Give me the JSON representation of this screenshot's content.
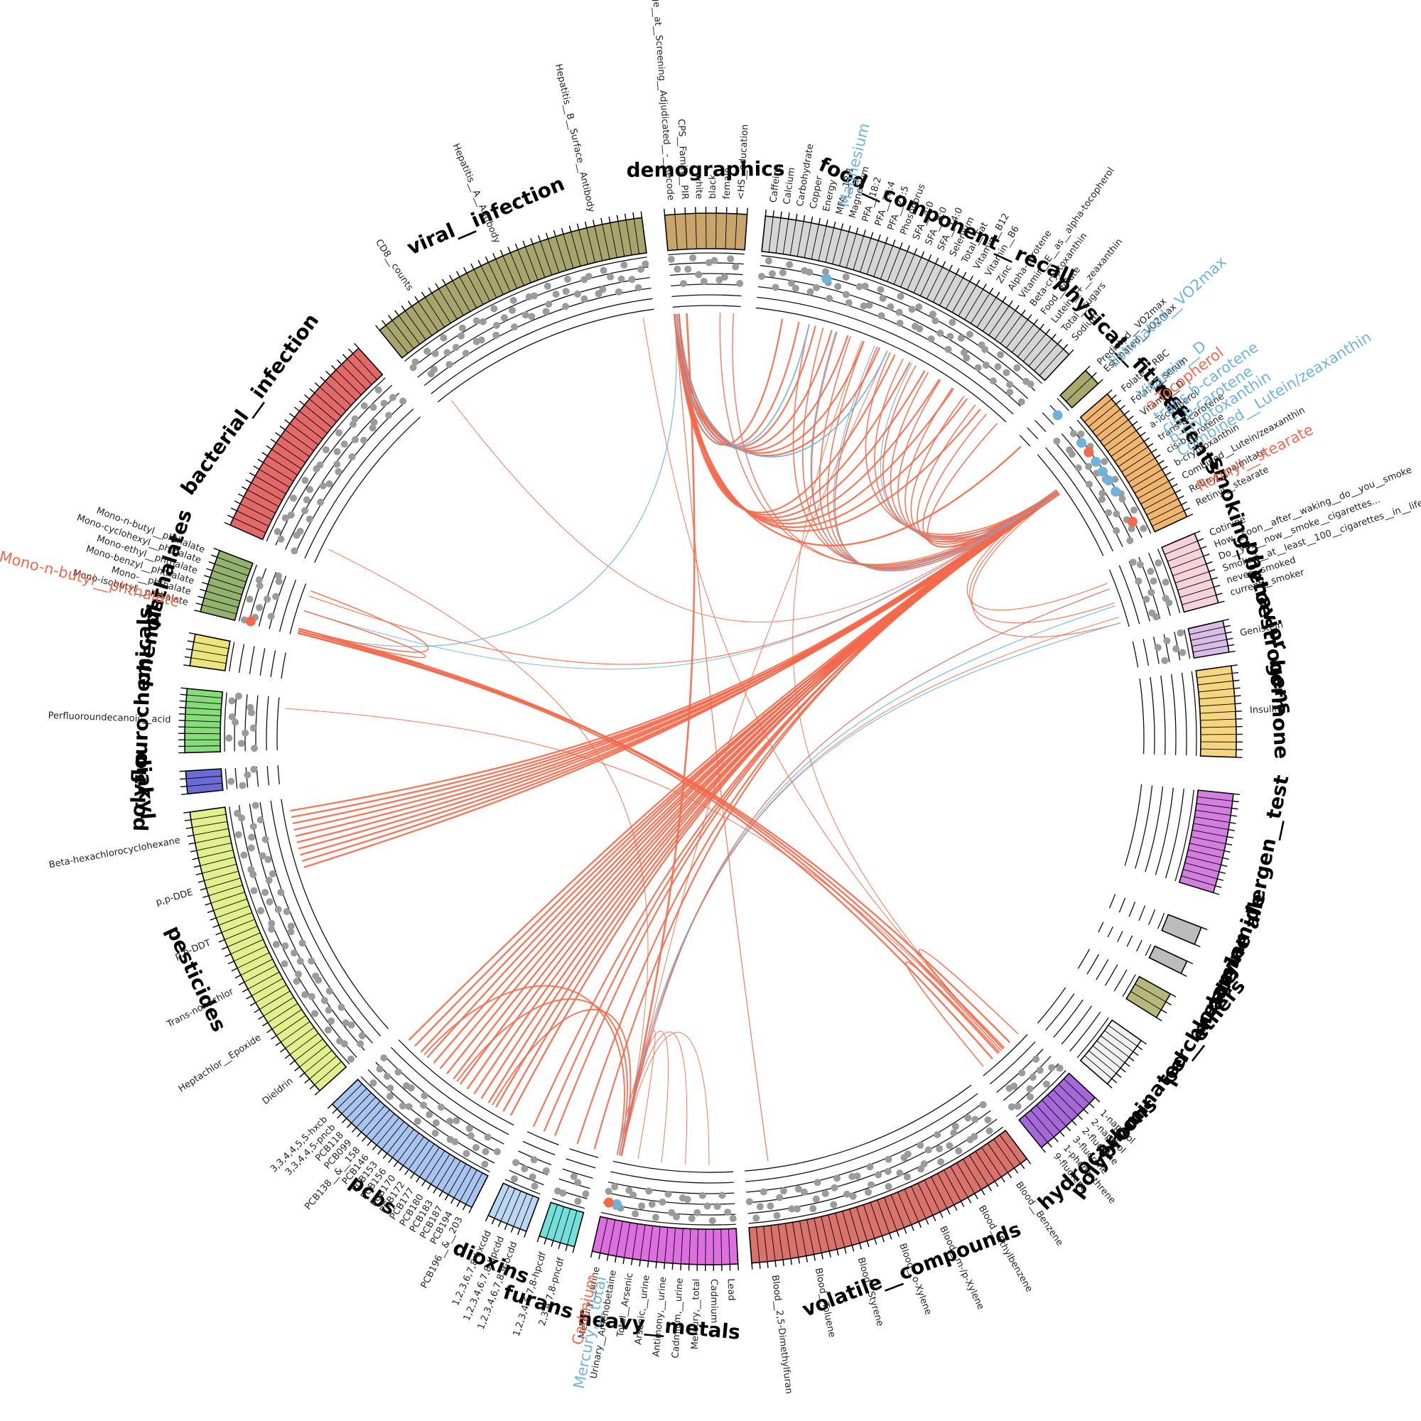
{
  "colors": {
    "positive": "#f4694b",
    "negative": "#6fb3dc",
    "dot": "#9b9b9b"
  },
  "groups": [
    {
      "id": "demographics",
      "label": "demographics",
      "start": -5.0,
      "end": 4.0,
      "color": "#c8a66b",
      "ticks": 8
    },
    {
      "id": "food",
      "label": "food__component__recall",
      "start": 6.0,
      "end": 43.0,
      "color": "#d5d5d5",
      "ticks": 44
    },
    {
      "id": "fitness",
      "label": "physical__fitness",
      "start": 45.5,
      "end": 47.5,
      "color": "#a8a86a",
      "ticks": 2
    },
    {
      "id": "nutrients",
      "label": "nutrients",
      "start": 49.0,
      "end": 65.0,
      "color": "#f0b56e",
      "ticks": 22
    },
    {
      "id": "smoking",
      "label": "smoking_behavior",
      "start": 67.0,
      "end": 75.0,
      "color": "#f6d3dc",
      "ticks": 9
    },
    {
      "id": "phyto",
      "label": "phytoestrogens",
      "start": 77.0,
      "end": 80.5,
      "color": "#d9bde6",
      "ticks": 5
    },
    {
      "id": "hormone",
      "label": "hormone",
      "start": 82.0,
      "end": 92.0,
      "color": "#f5d67e",
      "ticks": 12
    },
    {
      "id": "allergen",
      "label": "allergen__test",
      "start": 96.0,
      "end": 107.0,
      "color": "#d47fe0",
      "ticks": 14
    },
    {
      "id": "acrylamide",
      "label": "acrylamide",
      "start": 111.0,
      "end": 113.0,
      "color": "#bcbcbc",
      "ticks": 1
    },
    {
      "id": "melamine",
      "label": "melamine",
      "start": 115.0,
      "end": 116.5,
      "color": "#bcbcbc",
      "ticks": 1
    },
    {
      "id": "perchlorate",
      "label": "perchlorate",
      "start": 119.0,
      "end": 122.0,
      "color": "#b7b77b",
      "ticks": 3
    },
    {
      "id": "pbde",
      "label": "polybrominated__ethers",
      "start": 125.0,
      "end": 131.0,
      "color": "#f0f0f0",
      "ticks": 8
    },
    {
      "id": "hydro",
      "label": "hydrocarbons",
      "start": 133.0,
      "end": 141.0,
      "color": "#a468d8",
      "ticks": 9
    },
    {
      "id": "voc",
      "label": "volatile__compounds",
      "start": 143.0,
      "end": 175.5,
      "color": "#d9726a",
      "ticks": 38
    },
    {
      "id": "metals",
      "label": "heavy__metals",
      "start": 177.0,
      "end": 193.0,
      "color": "#dd6fe0",
      "ticks": 18
    },
    {
      "id": "furans",
      "label": "furans",
      "start": 195.0,
      "end": 199.0,
      "color": "#73e0dc",
      "ticks": 5
    },
    {
      "id": "dioxins",
      "label": "dioxins",
      "start": 200.5,
      "end": 205.0,
      "color": "#bcd7f2",
      "ticks": 6
    },
    {
      "id": "pcbs",
      "label": "pcbs",
      "start": 207.0,
      "end": 226.0,
      "color": "#a9c4ee",
      "ticks": 26
    },
    {
      "id": "pesticides",
      "label": "pesticides",
      "start": 228.0,
      "end": 262.0,
      "color": "#e3ef8c",
      "ticks": 40
    },
    {
      "id": "diakyl",
      "label": "diakyl",
      "start": 264.0,
      "end": 266.5,
      "color": "#6b6bd6",
      "ticks": 3
    },
    {
      "id": "polyfluoro",
      "label": "polyflourochemicals",
      "start": 268.5,
      "end": 275.5,
      "color": "#86dc79",
      "ticks": 10
    },
    {
      "id": "phenols",
      "label": "phenols",
      "start": 278.0,
      "end": 281.5,
      "color": "#ece57c",
      "ticks": 4
    },
    {
      "id": "phthalates",
      "label": "phthalates",
      "start": 284.0,
      "end": 291.0,
      "color": "#93b26d",
      "ticks": 9
    },
    {
      "id": "bacterial",
      "label": "bacterial__infection",
      "start": 294.0,
      "end": 318.0,
      "color": "#e36868",
      "ticks": 28
    },
    {
      "id": "viral",
      "label": "viral__infection",
      "start": 321.0,
      "end": 352.5,
      "color": "#a8a56c",
      "ticks": 36
    }
  ],
  "variable_labels": [
    {
      "group": "demographics",
      "items": [
        "Age__at__Screening__Adjudicated__-__Recode",
        "CPS__Family__PIR",
        "white",
        "black",
        "female",
        "<HS__education"
      ]
    },
    {
      "group": "food",
      "items": [
        "Caffeine",
        "Calcium",
        "Carbohydrate",
        "Copper",
        "Energy",
        "MFA__18:1",
        "Magnesium",
        "PFA__18:2",
        "PFA__20:4",
        "PFA__22:5",
        "Phosphorus",
        "SFA__4:0",
        "SFA__8:0",
        "SFA__14:0",
        "Selenium",
        "Total__Fat",
        "Vitamin__B12",
        "Vitamin__B6",
        "Zinc",
        "Alpha-carotene",
        "Vitamin__E__as__alpha-tocopherol",
        "Beta-cryptoxanthin",
        "Food__folate",
        "Lutein__+__zeaxanthin",
        "Total__sugars",
        "Sodium"
      ]
    },
    {
      "group": "fitness",
      "items": [
        "Predicted__VO2max",
        "Estimated__VO2max"
      ]
    },
    {
      "group": "nutrients",
      "items": [
        "Folate,__RBC",
        "Folate,__serum",
        "Vitamin__D",
        "a-Tocopherol",
        "trans-b-carotene",
        "cis-b-carotene",
        "b-cryptoxanthin",
        "Combined__Lutein/zeaxanthin",
        "Retinyl__palmitate",
        "Retinyl__stearate"
      ]
    },
    {
      "group": "smoking",
      "items": [
        "Cotinine",
        "How__soon__after__waking__do__you__smoke",
        "Do__you__now__smoke__cigarettes...",
        "Smoked__at__least__100__cigarettes__in__life",
        "never__smoked",
        "current__smoker"
      ]
    },
    {
      "group": "phyto",
      "items": [
        "Genistein"
      ]
    },
    {
      "group": "hormone",
      "items": [
        "Insulin"
      ]
    },
    {
      "group": "hydro",
      "items": [
        "1-napthol",
        "2-napthol",
        "2-fluorene",
        "3-fluorene",
        "1-phenanthrene",
        "9-fluorene"
      ]
    },
    {
      "group": "voc",
      "items": [
        "Blood__Benzene",
        "Blood__Ethylbenzene",
        "Blood__m-/p-Xylene",
        "Blood__o-Xylene",
        "Blood__Styrene",
        "Blood__Toluene",
        "Blood__2,5-Dimethylfuran"
      ]
    },
    {
      "group": "metals",
      "items": [
        "Lead",
        "Cadmium",
        "Mercury,__total",
        "Cadmium,__urine",
        "Antimony,__urine",
        "Arsenic,__urine",
        "Total__Arsenic",
        "Urinary__Arsenobetaine",
        "Mercury,__urine"
      ]
    },
    {
      "group": "furans",
      "items": [
        "2,3,4,7,8-pncdf",
        "1,2,3,4,6,7,8-hpcdf"
      ]
    },
    {
      "group": "dioxins",
      "items": [
        "1,2,3,4,6,7,8,9-ocdd",
        "1,2,3,4,6,7,8-hpcdd",
        "1,2,3,6,7,8-hxcdd"
      ]
    },
    {
      "group": "pcbs",
      "items": [
        "PCB196__&__203",
        "PCB194",
        "PCB187",
        "PCB183",
        "PCB180",
        "PCB177",
        "PCB172",
        "PCB170",
        "PCB156",
        "PCB153",
        "PCB146",
        "PCB138__&__158",
        "PCB099",
        "PCB118",
        "3,3,4,4,5-pncb",
        "3,3,4,4,5,5-hxcb"
      ]
    },
    {
      "group": "pesticides",
      "items": [
        "Dieldrin",
        "Heptachlor__Epoxide",
        "Trans-nonachlor",
        "p,p-DDT",
        "p,p-DDE",
        "Beta-hexachlorocyclohexane"
      ]
    },
    {
      "group": "polyfluoro",
      "items": [
        "Perfluoroundecanoic__acid"
      ]
    },
    {
      "group": "phthalates",
      "items": [
        "Mono-isobutyl__phthalate",
        "Mono-__phthalate",
        "Mono-benzyl__phthalate",
        "Mono-ethyl__phthalate",
        "Mono-cyclohexyl__phthalate",
        "Mono-n-butyl__phthalate"
      ]
    },
    {
      "group": "bacterial",
      "items": []
    },
    {
      "group": "viral",
      "items": [
        "CD8__counts",
        "Hepatitis__A__Antibody",
        "Hepatitis__B__Surface__Antibody"
      ]
    }
  ],
  "highlighted_labels": [
    {
      "text": "Magnesium",
      "group": "food",
      "pos": 0.22,
      "color": "#6fb3dc"
    },
    {
      "text": "Estimated__VO2max",
      "group": "fitness",
      "pos": 0.75,
      "color": "#6fb3dc"
    },
    {
      "text": "Vitamin__D",
      "group": "nutrients",
      "pos": 0.15,
      "color": "#6fb3dc"
    },
    {
      "text": "a-Tocopherol",
      "group": "nutrients",
      "pos": 0.24,
      "color": "#f4694b"
    },
    {
      "text": "trans-b-carotene",
      "group": "nutrients",
      "pos": 0.33,
      "color": "#6fb3dc"
    },
    {
      "text": "cis-b-carotene",
      "group": "nutrients",
      "pos": 0.42,
      "color": "#6fb3dc"
    },
    {
      "text": "b-cryptoxanthin",
      "group": "nutrients",
      "pos": 0.5,
      "color": "#6fb3dc"
    },
    {
      "text": "Combined__Lutein/zeaxanthin",
      "group": "nutrients",
      "pos": 0.6,
      "color": "#6fb3dc"
    },
    {
      "text": "Retinyl__stearate",
      "group": "nutrients",
      "pos": 0.86,
      "color": "#f4694b"
    },
    {
      "text": "Mercury,__total",
      "group": "metals",
      "pos": 0.9,
      "color": "#6fb3dc"
    },
    {
      "text": "Cadmium",
      "group": "metals",
      "pos": 0.96,
      "color": "#f4694b"
    },
    {
      "text": "Mono-n-butyl__phthalate",
      "group": "phthalates",
      "pos": 0.05,
      "color": "#f4694b"
    }
  ],
  "hubs": [
    {
      "id": "nutrients_hub",
      "group": "nutrients",
      "pos": 0.35
    },
    {
      "id": "metals_hub",
      "group": "metals",
      "pos": 0.96
    },
    {
      "id": "demo_hub",
      "group": "demographics",
      "pos": 0.05
    },
    {
      "id": "phthal_hub",
      "group": "phthalates",
      "pos": 0.1
    },
    {
      "id": "hydro_hub",
      "group": "hydro",
      "pos": 0.5
    }
  ],
  "links": [
    {
      "from": "nutrients_hub",
      "to_group": "pesticides",
      "count": 10,
      "range": [
        0.72,
        0.95
      ],
      "sign": "pos",
      "w": 2.4
    },
    {
      "from": "nutrients_hub",
      "to_group": "pcbs",
      "count": 16,
      "range": [
        0.05,
        0.95
      ],
      "sign": "pos",
      "w": 2.4
    },
    {
      "from": "nutrients_hub",
      "to_group": "dioxins",
      "count": 3,
      "range": [
        0.2,
        0.9
      ],
      "sign": "pos",
      "w": 2.2
    },
    {
      "from": "nutrients_hub",
      "to_group": "furans",
      "count": 2,
      "range": [
        0.2,
        0.8
      ],
      "sign": "pos",
      "w": 2.2
    },
    {
      "from": "nutrients_hub",
      "to_group": "phthalates",
      "count": 1,
      "range": [
        0.8,
        0.8
      ],
      "sign": "pos",
      "w": 1.2
    },
    {
      "from": "nutrients_hub",
      "to_group": "food",
      "count": 16,
      "range": [
        0.2,
        0.98
      ],
      "sign": "pos",
      "w": 1.6
    },
    {
      "from": "nutrients_hub",
      "to_group": "food",
      "count": 3,
      "range": [
        0.3,
        0.6
      ],
      "sign": "neg",
      "w": 1.2
    },
    {
      "from": "nutrients_hub",
      "to_group": "demographics",
      "count": 2,
      "range": [
        0.7,
        0.9
      ],
      "sign": "pos",
      "w": 1.4
    },
    {
      "from": "nutrients_hub",
      "to_group": "smoking",
      "count": 3,
      "range": [
        0.2,
        0.9
      ],
      "sign": "pos",
      "w": 1.2
    },
    {
      "from": "nutrients_hub",
      "to_group": "viral",
      "count": 1,
      "range": [
        0.05,
        0.05
      ],
      "sign": "pos",
      "w": 1.0
    },
    {
      "from": "nutrients_hub",
      "to_group": "phthalates",
      "count": 1,
      "range": [
        0.5,
        0.5
      ],
      "sign": "neg",
      "w": 1.0
    },
    {
      "from": "metals_hub",
      "to_group": "pcbs",
      "count": 3,
      "range": [
        0.2,
        0.8
      ],
      "sign": "pos",
      "w": 2.0
    },
    {
      "from": "metals_hub",
      "to_group": "demographics",
      "count": 1,
      "range": [
        0.2,
        0.2
      ],
      "sign": "pos",
      "w": 2.6
    },
    {
      "from": "metals_hub",
      "to_group": "metals",
      "count": 4,
      "range": [
        0.2,
        0.8
      ],
      "sign": "pos",
      "w": 1.0
    },
    {
      "from": "metals_hub",
      "to_group": "smoking",
      "count": 3,
      "range": [
        0.3,
        0.9
      ],
      "sign": "neg",
      "w": 1.2
    },
    {
      "from": "metals_hub",
      "to_group": "smoking",
      "count": 2,
      "range": [
        0.3,
        0.8
      ],
      "sign": "pos",
      "w": 1.0
    },
    {
      "from": "metals_hub",
      "to_group": "food",
      "count": 1,
      "range": [
        0.5,
        0.5
      ],
      "sign": "pos",
      "w": 1.0
    },
    {
      "from": "metals_hub",
      "to_group": "bacterial",
      "count": 1,
      "range": [
        0.1,
        0.1
      ],
      "sign": "pos",
      "w": 1.0
    },
    {
      "from": "demo_hub",
      "to_group": "phthalates",
      "count": 1,
      "range": [
        0.1,
        0.1
      ],
      "sign": "neg",
      "w": 1.2
    },
    {
      "from": "demo_hub",
      "to_group": "food",
      "count": 14,
      "range": [
        0.1,
        0.9
      ],
      "sign": "pos",
      "w": 2.2
    },
    {
      "from": "demo_hub",
      "to_group": "food",
      "count": 2,
      "range": [
        0.2,
        0.5
      ],
      "sign": "neg",
      "w": 1.8
    },
    {
      "from": "demo_hub",
      "to_group": "fitness",
      "count": 1,
      "range": [
        0.6,
        0.6
      ],
      "sign": "pos",
      "w": 2.4
    },
    {
      "from": "demo_hub",
      "to_group": "voc",
      "count": 1,
      "range": [
        0.9,
        0.9
      ],
      "sign": "pos",
      "w": 1.2
    },
    {
      "from": "phthal_hub",
      "to_group": "hydro",
      "count": 4,
      "range": [
        0.3,
        0.7
      ],
      "sign": "pos",
      "w": 2.4
    },
    {
      "from": "phthal_hub",
      "to_group": "phthalates",
      "count": 3,
      "range": [
        0.1,
        0.9
      ],
      "sign": "pos",
      "w": 1.6
    },
    {
      "from": "hydro_hub",
      "to_group": "hydro",
      "count": 3,
      "range": [
        0.1,
        0.9
      ],
      "sign": "pos",
      "w": 1.6
    },
    {
      "from": "hydro_hub",
      "to_group": "polyfluoro",
      "count": 1,
      "range": [
        0.8,
        0.8
      ],
      "sign": "pos",
      "w": 1.0
    },
    {
      "from": "hydro_hub",
      "to_group": "viral",
      "count": 1,
      "range": [
        0.95,
        0.95
      ],
      "sign": "pos",
      "w": 1.0
    },
    {
      "from": "hydro_hub",
      "to_group": "food",
      "count": 1,
      "range": [
        0.4,
        0.4
      ],
      "sign": "pos",
      "w": 1.0
    }
  ],
  "dot_groups": [
    "demographics",
    "food",
    "nutrients",
    "smoking",
    "phyto",
    "pcbs",
    "dioxins",
    "furans",
    "metals",
    "voc",
    "hydro",
    "pesticides",
    "diakyl",
    "polyfluoro",
    "phthalates",
    "bacterial",
    "viral"
  ]
}
